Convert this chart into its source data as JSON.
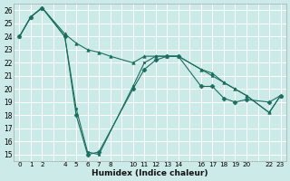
{
  "xlabel": "Humidex (Indice chaleur)",
  "bg_color": "#cceae8",
  "grid_color": "#ffffff",
  "line_color": "#1a6e5e",
  "ylim": [
    14.5,
    26.5
  ],
  "xlim": [
    -0.5,
    23.5
  ],
  "yticks": [
    15,
    16,
    17,
    18,
    19,
    20,
    21,
    22,
    23,
    24,
    25,
    26
  ],
  "xticks": [
    0,
    1,
    2,
    4,
    5,
    6,
    7,
    8,
    10,
    11,
    12,
    13,
    14,
    16,
    17,
    18,
    19,
    20,
    22,
    23
  ],
  "series": [
    {
      "x": [
        0,
        1,
        2,
        4,
        5,
        6,
        7,
        10,
        11,
        12,
        13,
        14,
        16,
        17,
        18,
        19,
        20,
        22,
        23
      ],
      "y": [
        24.0,
        25.5,
        26.2,
        24.0,
        18.0,
        15.0,
        15.2,
        20.0,
        21.5,
        22.2,
        22.5,
        22.5,
        20.2,
        20.2,
        19.3,
        19.0,
        19.2,
        19.0,
        19.5
      ],
      "marker": "D",
      "markersize": 2.5
    },
    {
      "x": [
        0,
        1,
        2,
        4,
        5,
        6,
        7,
        8,
        10,
        11,
        12,
        13,
        14,
        16,
        17,
        18,
        19,
        20,
        22,
        23
      ],
      "y": [
        24.0,
        25.5,
        26.2,
        24.2,
        23.5,
        23.0,
        22.8,
        22.5,
        22.0,
        22.5,
        22.5,
        22.5,
        22.5,
        21.5,
        21.2,
        20.5,
        20.0,
        19.5,
        18.2,
        19.5
      ],
      "marker": "^",
      "markersize": 2.5
    },
    {
      "x": [
        0,
        1,
        2,
        4,
        5,
        6,
        7,
        10,
        11,
        12,
        13,
        14,
        16,
        17,
        18,
        19,
        20,
        22,
        23
      ],
      "y": [
        24.0,
        25.5,
        26.2,
        24.0,
        18.5,
        15.2,
        15.0,
        20.2,
        22.0,
        22.5,
        22.5,
        22.5,
        21.5,
        21.0,
        20.5,
        20.0,
        19.5,
        18.2,
        19.5
      ],
      "marker": "s",
      "markersize": 2.0
    }
  ]
}
